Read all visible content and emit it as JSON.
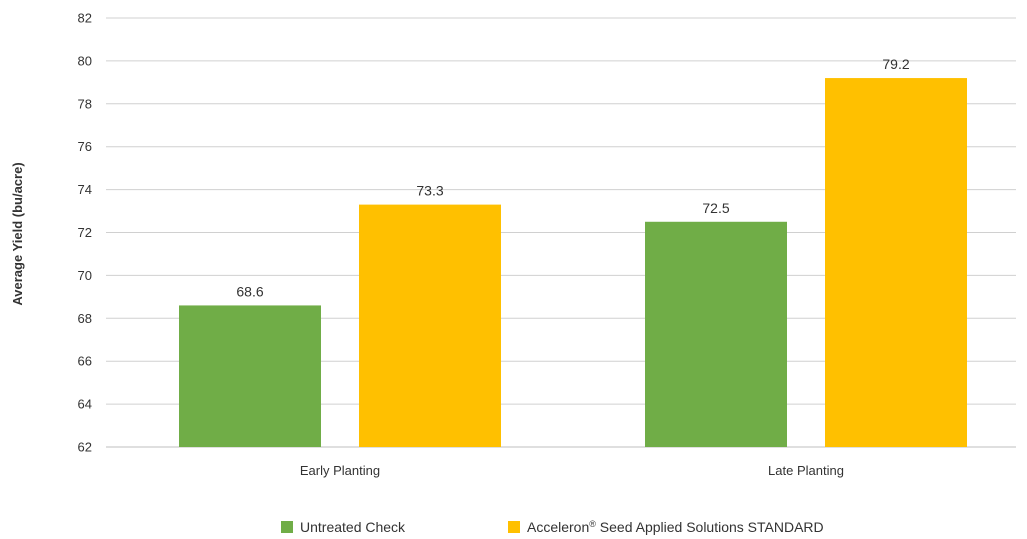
{
  "chart_data": {
    "type": "bar",
    "title": "",
    "xlabel": "",
    "ylabel": "Average Yield (bu/acre)",
    "ylim": [
      62,
      82
    ],
    "yticks": [
      62,
      64,
      66,
      68,
      70,
      72,
      74,
      76,
      78,
      80,
      82
    ],
    "grid": true,
    "legend_position": "bottom",
    "categories": [
      "Early Planting",
      "Late Planting"
    ],
    "series": [
      {
        "name": "Untreated Check",
        "values": [
          68.6,
          72.5
        ],
        "color": "#70AD47"
      },
      {
        "name": "Acceleron® Seed Applied Solutions STANDARD",
        "values": [
          73.3,
          79.2
        ],
        "color": "#FFC000"
      }
    ]
  }
}
